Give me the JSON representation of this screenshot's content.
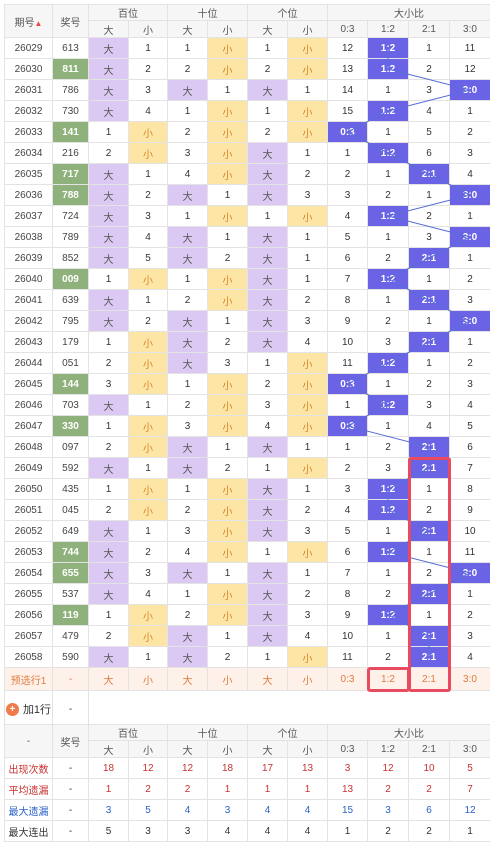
{
  "header": {
    "period": "期号",
    "prize": "奖号",
    "groups": [
      "百位",
      "十位",
      "个位",
      "大小比"
    ],
    "big": "大",
    "small": "小",
    "ratios": [
      "0:3",
      "1:2",
      "2:1",
      "3:0"
    ]
  },
  "rows": [
    {
      "p": "26029",
      "n": "613",
      "h": false,
      "d": [
        {
          "b": "大"
        },
        "1"
      ],
      "t": [
        "1",
        {
          "s": "小"
        }
      ],
      "o": [
        "1",
        {
          "s": "小"
        }
      ],
      "r": [
        "12",
        {
          "x": "1:2"
        },
        "1",
        "11"
      ]
    },
    {
      "p": "26030",
      "n": "811",
      "h": true,
      "d": [
        {
          "b": "大"
        },
        "2"
      ],
      "t": [
        "2",
        {
          "s": "小"
        }
      ],
      "o": [
        "2",
        {
          "s": "小"
        }
      ],
      "r": [
        "13",
        {
          "x": "1:2"
        },
        "2",
        "12"
      ]
    },
    {
      "p": "26031",
      "n": "786",
      "h": false,
      "d": [
        {
          "b": "大"
        },
        "3"
      ],
      "t": [
        {
          "b": "大"
        },
        "1"
      ],
      "o": [
        {
          "b": "大"
        },
        "1"
      ],
      "r": [
        "14",
        "1",
        "3",
        {
          "x": "3:0"
        }
      ]
    },
    {
      "p": "26032",
      "n": "730",
      "h": false,
      "d": [
        {
          "b": "大"
        },
        "4"
      ],
      "t": [
        "1",
        {
          "s": "小"
        }
      ],
      "o": [
        "1",
        {
          "s": "小"
        }
      ],
      "r": [
        "15",
        {
          "x": "1:2"
        },
        "4",
        "1"
      ]
    },
    {
      "p": "26033",
      "n": "141",
      "h": true,
      "d": [
        "1",
        {
          "s": "小"
        }
      ],
      "t": [
        "2",
        {
          "s": "小"
        }
      ],
      "o": [
        "2",
        {
          "s": "小"
        }
      ],
      "r": [
        {
          "x": "0:3"
        },
        "1",
        "5",
        "2"
      ]
    },
    {
      "p": "26034",
      "n": "216",
      "h": false,
      "sep": true,
      "d": [
        "2",
        {
          "s": "小"
        }
      ],
      "t": [
        "3",
        {
          "s": "小"
        }
      ],
      "o": [
        {
          "b": "大"
        },
        "1"
      ],
      "r": [
        "1",
        {
          "x": "1:2"
        },
        "6",
        "3"
      ]
    },
    {
      "p": "26035",
      "n": "717",
      "h": true,
      "d": [
        {
          "b": "大"
        },
        "1"
      ],
      "t": [
        "4",
        {
          "s": "小"
        }
      ],
      "o": [
        {
          "b": "大"
        },
        "2"
      ],
      "r": [
        "2",
        "1",
        {
          "x": "2:1"
        },
        "4"
      ]
    },
    {
      "p": "26036",
      "n": "788",
      "h": true,
      "d": [
        {
          "b": "大"
        },
        "2"
      ],
      "t": [
        {
          "b": "大"
        },
        "1"
      ],
      "o": [
        {
          "b": "大"
        },
        "3"
      ],
      "r": [
        "3",
        "2",
        "1",
        {
          "x": "3:0"
        }
      ]
    },
    {
      "p": "26037",
      "n": "724",
      "h": false,
      "d": [
        {
          "b": "大"
        },
        "3"
      ],
      "t": [
        "1",
        {
          "s": "小"
        }
      ],
      "o": [
        "1",
        {
          "s": "小"
        }
      ],
      "r": [
        "4",
        {
          "x": "1:2"
        },
        "2",
        "1"
      ]
    },
    {
      "p": "26038",
      "n": "789",
      "h": false,
      "d": [
        {
          "b": "大"
        },
        "4"
      ],
      "t": [
        {
          "b": "大"
        },
        "1"
      ],
      "o": [
        {
          "b": "大"
        },
        "1"
      ],
      "r": [
        "5",
        "1",
        "3",
        {
          "x": "3:0"
        }
      ]
    },
    {
      "p": "26039",
      "n": "852",
      "h": false,
      "sep": true,
      "d": [
        {
          "b": "大"
        },
        "5"
      ],
      "t": [
        {
          "b": "大"
        },
        "2"
      ],
      "o": [
        {
          "b": "大"
        },
        "1"
      ],
      "r": [
        "6",
        "2",
        {
          "x": "2:1"
        },
        "1"
      ]
    },
    {
      "p": "26040",
      "n": "009",
      "h": true,
      "d": [
        "1",
        {
          "s": "小"
        }
      ],
      "t": [
        "1",
        {
          "s": "小"
        }
      ],
      "o": [
        {
          "b": "大"
        },
        "1"
      ],
      "r": [
        "7",
        {
          "x": "1:2"
        },
        "1",
        "2"
      ]
    },
    {
      "p": "26041",
      "n": "639",
      "h": false,
      "d": [
        {
          "b": "大"
        },
        "1"
      ],
      "t": [
        "2",
        {
          "s": "小"
        }
      ],
      "o": [
        {
          "b": "大"
        },
        "2"
      ],
      "r": [
        "8",
        "1",
        {
          "x": "2:1"
        },
        "3"
      ]
    },
    {
      "p": "26042",
      "n": "795",
      "h": false,
      "d": [
        {
          "b": "大"
        },
        "2"
      ],
      "t": [
        {
          "b": "大"
        },
        "1"
      ],
      "o": [
        {
          "b": "大"
        },
        "3"
      ],
      "r": [
        "9",
        "2",
        "1",
        {
          "x": "3:0"
        }
      ]
    },
    {
      "p": "26043",
      "n": "179",
      "h": false,
      "d": [
        "1",
        {
          "s": "小"
        }
      ],
      "t": [
        {
          "b": "大"
        },
        "2"
      ],
      "o": [
        {
          "b": "大"
        },
        "4"
      ],
      "r": [
        "10",
        "3",
        {
          "x": "2:1"
        },
        "1"
      ]
    },
    {
      "p": "26044",
      "n": "051",
      "h": false,
      "sep": true,
      "d": [
        "2",
        {
          "s": "小"
        }
      ],
      "t": [
        {
          "b": "大"
        },
        "3"
      ],
      "o": [
        "1",
        {
          "s": "小"
        }
      ],
      "r": [
        "11",
        {
          "x": "1:2"
        },
        "1",
        "2"
      ]
    },
    {
      "p": "26045",
      "n": "144",
      "h": true,
      "d": [
        "3",
        {
          "s": "小"
        }
      ],
      "t": [
        "1",
        {
          "s": "小"
        }
      ],
      "o": [
        "2",
        {
          "s": "小"
        }
      ],
      "r": [
        {
          "x": "0:3"
        },
        "1",
        "2",
        "3"
      ]
    },
    {
      "p": "26046",
      "n": "703",
      "h": false,
      "d": [
        {
          "b": "大"
        },
        "1"
      ],
      "t": [
        "2",
        {
          "s": "小"
        }
      ],
      "o": [
        "3",
        {
          "s": "小"
        }
      ],
      "r": [
        "1",
        {
          "x": "1:2"
        },
        "3",
        "4"
      ]
    },
    {
      "p": "26047",
      "n": "330",
      "h": true,
      "d": [
        "1",
        {
          "s": "小"
        }
      ],
      "t": [
        "3",
        {
          "s": "小"
        }
      ],
      "o": [
        "4",
        {
          "s": "小"
        }
      ],
      "r": [
        {
          "x": "0:3"
        },
        "1",
        "4",
        "5"
      ]
    },
    {
      "p": "26048",
      "n": "097",
      "h": false,
      "d": [
        "2",
        {
          "s": "小"
        }
      ],
      "t": [
        {
          "b": "大"
        },
        "1"
      ],
      "o": [
        {
          "b": "大"
        },
        "1"
      ],
      "r": [
        "1",
        "2",
        {
          "x": "2:1"
        },
        "6"
      ]
    },
    {
      "p": "26049",
      "n": "592",
      "h": false,
      "sep": true,
      "d": [
        {
          "b": "大"
        },
        "1"
      ],
      "t": [
        {
          "b": "大"
        },
        "2"
      ],
      "o": [
        "1",
        {
          "s": "小"
        }
      ],
      "r": [
        "2",
        "3",
        {
          "x": "2:1"
        },
        "7"
      ]
    },
    {
      "p": "26050",
      "n": "435",
      "h": false,
      "d": [
        "1",
        {
          "s": "小"
        }
      ],
      "t": [
        "1",
        {
          "s": "小"
        }
      ],
      "o": [
        {
          "b": "大"
        },
        "1"
      ],
      "r": [
        "3",
        {
          "x": "1:2"
        },
        "1",
        "8"
      ]
    },
    {
      "p": "26051",
      "n": "045",
      "h": false,
      "d": [
        "2",
        {
          "s": "小"
        }
      ],
      "t": [
        "2",
        {
          "s": "小"
        }
      ],
      "o": [
        {
          "b": "大"
        },
        "2"
      ],
      "r": [
        "4",
        {
          "x": "1:2"
        },
        "2",
        "9"
      ]
    },
    {
      "p": "26052",
      "n": "649",
      "h": false,
      "d": [
        {
          "b": "大"
        },
        "1"
      ],
      "t": [
        "3",
        {
          "s": "小"
        }
      ],
      "o": [
        {
          "b": "大"
        },
        "3"
      ],
      "r": [
        "5",
        "1",
        {
          "x": "2:1"
        },
        "10"
      ]
    },
    {
      "p": "26053",
      "n": "744",
      "h": true,
      "d": [
        {
          "b": "大"
        },
        "2"
      ],
      "t": [
        "4",
        {
          "s": "小"
        }
      ],
      "o": [
        "1",
        {
          "s": "小"
        }
      ],
      "r": [
        "6",
        {
          "x": "1:2"
        },
        "1",
        "11"
      ]
    },
    {
      "p": "26054",
      "n": "655",
      "h": true,
      "sep": true,
      "d": [
        {
          "b": "大"
        },
        "3"
      ],
      "t": [
        {
          "b": "大"
        },
        "1"
      ],
      "o": [
        {
          "b": "大"
        },
        "1"
      ],
      "r": [
        "7",
        "1",
        "2",
        {
          "x": "3:0"
        }
      ]
    },
    {
      "p": "26055",
      "n": "537",
      "h": false,
      "d": [
        {
          "b": "大"
        },
        "4"
      ],
      "t": [
        "1",
        {
          "s": "小"
        }
      ],
      "o": [
        {
          "b": "大"
        },
        "2"
      ],
      "r": [
        "8",
        "2",
        {
          "x": "2:1"
        },
        "1"
      ]
    },
    {
      "p": "26056",
      "n": "119",
      "h": true,
      "d": [
        "1",
        {
          "s": "小"
        }
      ],
      "t": [
        "2",
        {
          "s": "小"
        }
      ],
      "o": [
        {
          "b": "大"
        },
        "3"
      ],
      "r": [
        "9",
        {
          "x": "1:2"
        },
        "1",
        "2"
      ]
    },
    {
      "p": "26057",
      "n": "479",
      "h": false,
      "d": [
        "2",
        {
          "s": "小"
        }
      ],
      "t": [
        {
          "b": "大"
        },
        "1"
      ],
      "o": [
        {
          "b": "大"
        },
        "4"
      ],
      "r": [
        "10",
        "1",
        {
          "x": "2:1"
        },
        "3"
      ]
    },
    {
      "p": "26058",
      "n": "590",
      "h": false,
      "d": [
        {
          "b": "大"
        },
        "1"
      ],
      "t": [
        {
          "b": "大"
        },
        "2"
      ],
      "o": [
        "1",
        {
          "s": "小"
        }
      ],
      "r": [
        "11",
        "2",
        {
          "x": "2:1"
        },
        "4"
      ]
    }
  ],
  "predict": {
    "label": "预选行1",
    "prize": "-",
    "cells": [
      "大",
      "小",
      "大",
      "小",
      "大",
      "小",
      "0:3",
      "1:2",
      "2:1",
      "3:0"
    ]
  },
  "add_row": {
    "label": "加1行",
    "icon": "plus-icon",
    "value": "-"
  },
  "footer": {
    "dash": "-",
    "prize": "奖号"
  },
  "stats": [
    {
      "label": "出现次数",
      "color": "red",
      "prize": "-",
      "values": [
        "18",
        "12",
        "12",
        "18",
        "17",
        "13",
        "3",
        "12",
        "10",
        "5"
      ]
    },
    {
      "label": "平均遗漏",
      "color": "red",
      "prize": "-",
      "values": [
        "1",
        "2",
        "2",
        "1",
        "1",
        "1",
        "13",
        "2",
        "2",
        "7"
      ]
    },
    {
      "label": "最大遗漏",
      "color": "blue",
      "prize": "-",
      "values": [
        "3",
        "5",
        "4",
        "3",
        "4",
        "4",
        "15",
        "3",
        "6",
        "12"
      ]
    },
    {
      "label": "最大连出",
      "color": "default",
      "prize": "-",
      "values": [
        "5",
        "3",
        "3",
        "4",
        "4",
        "4",
        "1",
        "2",
        "2",
        "1"
      ]
    }
  ],
  "colors": {
    "big": "#dcc9f3",
    "small": "#fde6a5",
    "ratio": "#6b63e6",
    "prize_hl": "#8fb27c",
    "frame": "#e84a5f"
  }
}
